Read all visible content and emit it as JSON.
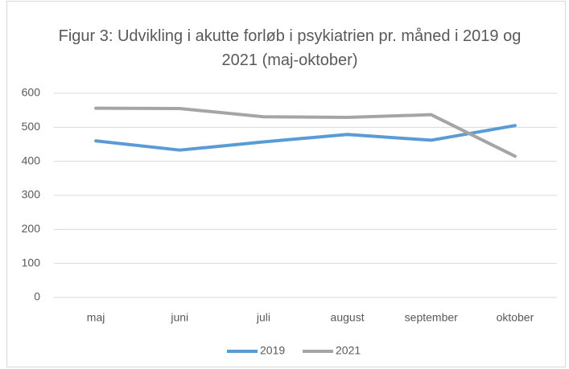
{
  "chart_data": {
    "type": "line",
    "title": "Figur 3: Udvikling i akutte forløb i psykiatrien pr. måned i 2019 og 2021 (maj-oktober)",
    "categories": [
      "maj",
      "juni",
      "juli",
      "august",
      "september",
      "oktober"
    ],
    "series": [
      {
        "name": "2019",
        "color": "#5b9bd5",
        "values": [
          460,
          433,
          457,
          479,
          462,
          505
        ]
      },
      {
        "name": "2021",
        "color": "#a5a5a5",
        "values": [
          556,
          555,
          531,
          529,
          537,
          415
        ]
      }
    ],
    "ylim": [
      0,
      600
    ],
    "yticks": [
      0,
      100,
      200,
      300,
      400,
      500,
      600
    ],
    "grid": true,
    "legend": "bottom"
  }
}
